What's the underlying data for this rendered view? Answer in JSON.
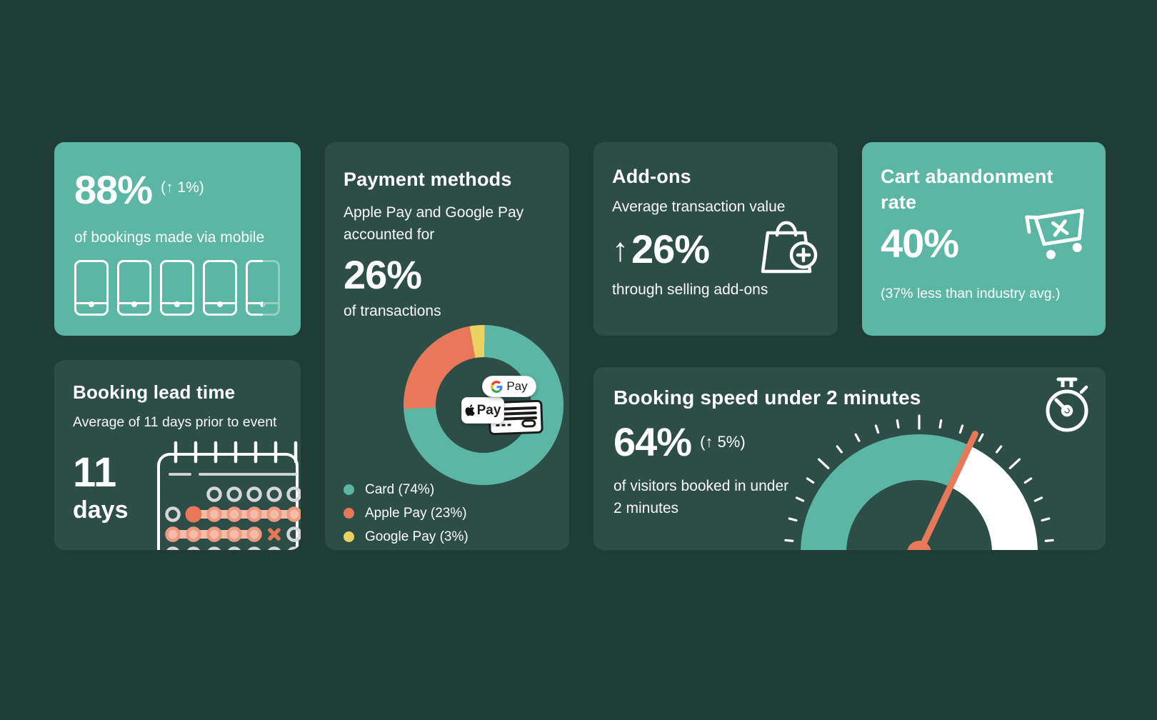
{
  "colors": {
    "background": "#1F3C36",
    "card_dark": "#2D4E47",
    "card_teal": "#5CB6A4",
    "accent_orange": "#E8785A",
    "accent_orange_light": "#F5BCA9",
    "accent_yellow": "#EBD160",
    "muted_gray": "#D6D6D6",
    "white": "#FFFFFF"
  },
  "cards": {
    "mobile": {
      "value": "88%",
      "delta": "(↑ 1%)",
      "caption": "of bookings made via mobile",
      "fill_percent": 88
    },
    "lead_time": {
      "title": "Booking lead time",
      "subtitle": "Average of 11 days prior to event",
      "value": "11",
      "unit": "days"
    },
    "payment": {
      "title": "Payment methods",
      "subtitle": "Apple Pay and Google Pay accounted for",
      "value": "26%",
      "caption": "of transactions",
      "badges": {
        "gpay_label": "Pay",
        "applepay_label": "Pay"
      },
      "legend": [
        {
          "label": "Card (74%)",
          "color": "#5CB6A4"
        },
        {
          "label": "Apple Pay (23%)",
          "color": "#E8785A"
        },
        {
          "label": "Google Pay (3%)",
          "color": "#EBD160"
        }
      ]
    },
    "addons": {
      "title": "Add-ons",
      "subtitle": "Average transaction value",
      "arrow": "↑",
      "value": "26%",
      "caption": "through selling add-ons"
    },
    "cart": {
      "title": "Cart abandonment rate",
      "value": "40%",
      "caption": "(37% less than industry avg.)"
    },
    "speed": {
      "title": "Booking speed under 2 minutes",
      "value": "64%",
      "delta": "(↑ 5%)",
      "caption": "of visitors booked in under 2 minutes"
    }
  },
  "chart_data": [
    {
      "type": "pie",
      "subtype": "donut",
      "title": "Payment methods share of transactions",
      "categories": [
        "Card",
        "Apple Pay",
        "Google Pay"
      ],
      "values": [
        74,
        23,
        3
      ],
      "colors": [
        "#5CB6A4",
        "#E8785A",
        "#EBD160"
      ],
      "legend_position": "bottom-left",
      "start_angle_deg": 350,
      "draw_order": [
        "Google Pay",
        "Card",
        "Apple Pay"
      ]
    },
    {
      "type": "gauge",
      "subtype": "semicircle",
      "title": "Share of visitors booking in under 2 minutes",
      "value": 64,
      "min": 0,
      "max": 100,
      "filled_color": "#5CB6A4",
      "empty_color": "#FFFFFF",
      "needle_color": "#E8785A"
    },
    {
      "type": "pictogram",
      "title": "Bookings made via mobile",
      "value": 88,
      "max": 100,
      "icons": 5,
      "icon": "phone"
    }
  ]
}
